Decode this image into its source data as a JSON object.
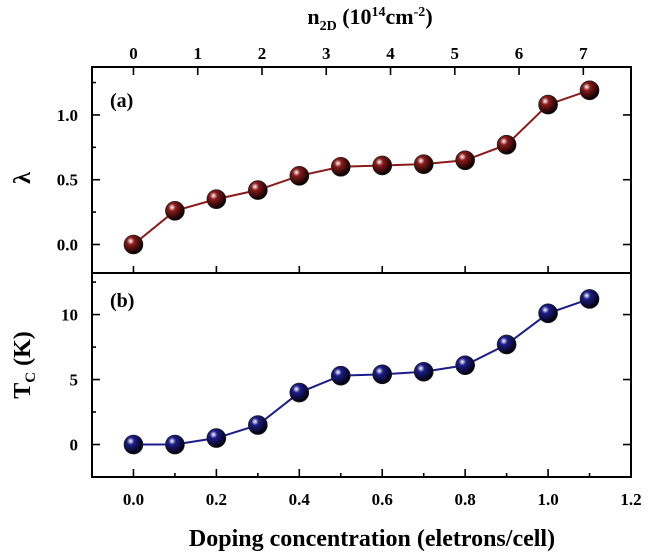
{
  "chart_data": [
    {
      "type": "line",
      "panel_label": "(a)",
      "ylabel": "λ",
      "x": [
        0.0,
        0.1,
        0.2,
        0.3,
        0.4,
        0.5,
        0.6,
        0.7,
        0.8,
        0.9,
        1.0,
        1.1
      ],
      "values": [
        0.0,
        0.26,
        0.35,
        0.42,
        0.53,
        0.6,
        0.61,
        0.62,
        0.65,
        0.77,
        1.08,
        1.19
      ],
      "ylim": [
        -0.22,
        1.37
      ],
      "yticks": [
        "0.0",
        "0.5",
        "1.0"
      ],
      "ytick_values": [
        0.0,
        0.5,
        1.0
      ],
      "color": "#8b1a1a",
      "top_axis": {
        "label_main": "n",
        "label_sub": "2D",
        "label_units_open": " (10",
        "label_exp1": "14",
        "label_mid": "cm",
        "label_exp2": "-2",
        "label_close": ")",
        "ticks": [
          "0",
          "1",
          "2",
          "3",
          "4",
          "5",
          "6",
          "7"
        ],
        "tick_values": [
          0,
          1,
          2,
          3,
          4,
          5,
          6,
          7
        ],
        "x_at_n1": 0.155
      }
    },
    {
      "type": "line",
      "panel_label": "(b)",
      "ylabel_main": "T",
      "ylabel_sub": "C",
      "ylabel_units": " (K)",
      "x": [
        0.0,
        0.1,
        0.2,
        0.3,
        0.4,
        0.5,
        0.6,
        0.7,
        0.8,
        0.9,
        1.0,
        1.1
      ],
      "values": [
        0.0,
        0.0,
        0.5,
        1.5,
        4.0,
        5.3,
        5.4,
        5.6,
        6.1,
        7.7,
        10.1,
        11.2
      ],
      "ylim": [
        -2.5,
        13.2
      ],
      "yticks": [
        "0",
        "5",
        "10"
      ],
      "ytick_values": [
        0,
        5,
        10
      ],
      "color": "#1c1c8a"
    }
  ],
  "x_axis": {
    "xlabel": "Doping concentration (eletrons/cell)",
    "xlim": [
      -0.1,
      1.2
    ],
    "ticks": [
      "0.0",
      "0.2",
      "0.4",
      "0.6",
      "0.8",
      "1.0",
      "1.2"
    ],
    "tick_values": [
      0.0,
      0.2,
      0.4,
      0.6,
      0.8,
      1.0,
      1.2
    ]
  }
}
